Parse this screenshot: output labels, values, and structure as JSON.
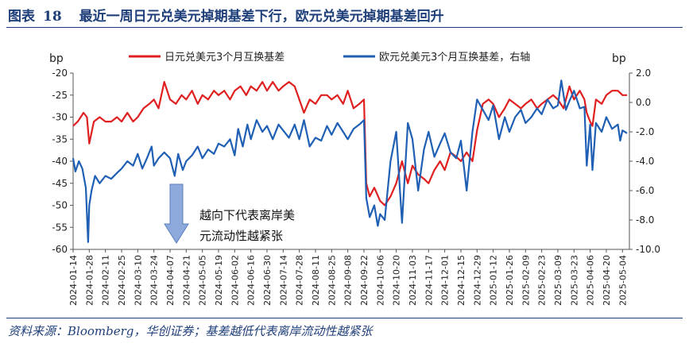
{
  "header": {
    "figure_label": "图表",
    "figure_number": "18",
    "title": "最近一周日元兑美元掉期基差下行，欧元兑美元掉期基差回升"
  },
  "footer": {
    "source": "资料来源：Bloomberg，华创证券；基差越低代表离岸流动性越紧张"
  },
  "annotation": {
    "line1": "越向下代表离岸美",
    "line2": "元流动性越紧张",
    "arrow_color": "#8ea9db",
    "arrow_icon": "down-arrow-icon"
  },
  "chart_data": {
    "type": "line",
    "y_left_label": "bp",
    "y_right_label": "bp",
    "y_left_range": [
      -60,
      -20
    ],
    "y_left_ticks": [
      "-20",
      "-25",
      "-30",
      "-35",
      "-40",
      "-45",
      "-50",
      "-55",
      "-60"
    ],
    "y_right_range": [
      -10,
      2
    ],
    "y_right_ticks": [
      "2.0",
      "0.0",
      "-2.0",
      "-4.0",
      "-6.0",
      "-8.0",
      "-10.0"
    ],
    "x_tick_labels": [
      "2024-01-14",
      "2024-01-28",
      "2024-02-11",
      "2024-02-25",
      "2024-03-10",
      "2024-03-24",
      "2024-04-07",
      "2024-04-21",
      "2024-05-05",
      "2024-05-19",
      "2024-06-02",
      "2024-06-16",
      "2024-06-30",
      "2024-07-14",
      "2024-07-28",
      "2024-08-11",
      "2024-08-25",
      "2024-09-08",
      "2024-09-22",
      "2024-10-06",
      "2024-10-20",
      "2024-11-03",
      "2024-11-17",
      "2024-12-01",
      "2024-12-15",
      "2024-12-29",
      "2025-01-12",
      "2025-01-26",
      "2025-02-09",
      "2025-02-23",
      "2025-03-09",
      "2025-03-23",
      "2025-04-06",
      "2025-04-20",
      "2025-05-04"
    ],
    "grid": false,
    "legend_position": "top",
    "series": [
      {
        "name": "日元兑美元3个月互换基差",
        "axis": "left",
        "color": "#e02020",
        "x": [
          "2024-01-14",
          "2024-01-18",
          "2024-01-23",
          "2024-01-26",
          "2024-01-28",
          "2024-02-01",
          "2024-02-06",
          "2024-02-11",
          "2024-02-16",
          "2024-02-21",
          "2024-02-25",
          "2024-03-01",
          "2024-03-06",
          "2024-03-10",
          "2024-03-15",
          "2024-03-20",
          "2024-03-24",
          "2024-03-28",
          "2024-04-02",
          "2024-04-07",
          "2024-04-12",
          "2024-04-17",
          "2024-04-21",
          "2024-04-26",
          "2024-05-01",
          "2024-05-05",
          "2024-05-10",
          "2024-05-15",
          "2024-05-19",
          "2024-05-24",
          "2024-05-29",
          "2024-06-02",
          "2024-06-07",
          "2024-06-12",
          "2024-06-16",
          "2024-06-21",
          "2024-06-26",
          "2024-06-30",
          "2024-07-05",
          "2024-07-10",
          "2024-07-14",
          "2024-07-19",
          "2024-07-24",
          "2024-07-28",
          "2024-08-01",
          "2024-08-06",
          "2024-08-11",
          "2024-08-16",
          "2024-08-21",
          "2024-08-25",
          "2024-08-30",
          "2024-09-04",
          "2024-09-08",
          "2024-09-13",
          "2024-09-18",
          "2024-09-22",
          "2024-09-24",
          "2024-09-27",
          "2024-10-01",
          "2024-10-06",
          "2024-10-10",
          "2024-10-15",
          "2024-10-20",
          "2024-10-25",
          "2024-10-30",
          "2024-11-03",
          "2024-11-08",
          "2024-11-13",
          "2024-11-17",
          "2024-11-22",
          "2024-11-27",
          "2024-12-01",
          "2024-12-06",
          "2024-12-11",
          "2024-12-15",
          "2024-12-20",
          "2024-12-25",
          "2024-12-29",
          "2025-01-03",
          "2025-01-08",
          "2025-01-12",
          "2025-01-17",
          "2025-01-22",
          "2025-01-26",
          "2025-01-31",
          "2025-02-05",
          "2025-02-09",
          "2025-02-14",
          "2025-02-19",
          "2025-02-23",
          "2025-02-28",
          "2025-03-05",
          "2025-03-09",
          "2025-03-14",
          "2025-03-19",
          "2025-03-23",
          "2025-03-28",
          "2025-04-01",
          "2025-04-03",
          "2025-04-06",
          "2025-04-08",
          "2025-04-11",
          "2025-04-16",
          "2025-04-20",
          "2025-04-25",
          "2025-04-30",
          "2025-05-04",
          "2025-05-08"
        ],
        "values": [
          -32,
          -31,
          -29,
          -30,
          -36,
          -31,
          -30,
          -31,
          -31,
          -30,
          -31,
          -29,
          -31,
          -30,
          -28,
          -27,
          -26,
          -28,
          -22,
          -26,
          -27,
          -25,
          -26,
          -24,
          -27,
          -25,
          -26,
          -24,
          -25,
          -24,
          -26,
          -24,
          -23,
          -25,
          -23,
          -24,
          -22,
          -24,
          -22,
          -24,
          -23,
          -22,
          -23,
          -26,
          -29,
          -26,
          -27,
          -25,
          -25,
          -26,
          -25,
          -27,
          -24,
          -28,
          -27,
          -26,
          -45,
          -48,
          -46,
          -49,
          -50,
          -48,
          -45,
          -40,
          -45,
          -41,
          -43,
          -44,
          -45,
          -42,
          -40,
          -42,
          -38,
          -39,
          -40,
          -38,
          -40,
          -33,
          -27,
          -26,
          -27,
          -30,
          -28,
          -26,
          -27,
          -28,
          -27,
          -26,
          -28,
          -27,
          -26,
          -25,
          -26,
          -28,
          -23,
          -26,
          -24,
          -26,
          -29,
          -31,
          -32,
          -26,
          -27,
          -25,
          -24,
          -24,
          -25,
          -25
        ]
      },
      {
        "name": "欧元兑美元3个月互换基差，右轴",
        "axis": "right",
        "color": "#1f5fb4",
        "x": [
          "2024-01-14",
          "2024-01-16",
          "2024-01-19",
          "2024-01-22",
          "2024-01-25",
          "2024-01-27",
          "2024-01-28",
          "2024-01-30",
          "2024-02-02",
          "2024-02-06",
          "2024-02-11",
          "2024-02-16",
          "2024-02-21",
          "2024-02-25",
          "2024-03-01",
          "2024-03-06",
          "2024-03-10",
          "2024-03-14",
          "2024-03-18",
          "2024-03-22",
          "2024-03-24",
          "2024-03-28",
          "2024-04-02",
          "2024-04-07",
          "2024-04-11",
          "2024-04-14",
          "2024-04-18",
          "2024-04-21",
          "2024-04-26",
          "2024-05-01",
          "2024-05-05",
          "2024-05-10",
          "2024-05-15",
          "2024-05-19",
          "2024-05-24",
          "2024-05-29",
          "2024-06-02",
          "2024-06-05",
          "2024-06-09",
          "2024-06-13",
          "2024-06-16",
          "2024-06-21",
          "2024-06-26",
          "2024-06-30",
          "2024-07-05",
          "2024-07-10",
          "2024-07-14",
          "2024-07-19",
          "2024-07-24",
          "2024-07-28",
          "2024-08-01",
          "2024-08-06",
          "2024-08-11",
          "2024-08-16",
          "2024-08-21",
          "2024-08-25",
          "2024-08-30",
          "2024-09-04",
          "2024-09-08",
          "2024-09-13",
          "2024-09-18",
          "2024-09-22",
          "2024-09-24",
          "2024-09-27",
          "2024-10-01",
          "2024-10-04",
          "2024-10-06",
          "2024-10-10",
          "2024-10-15",
          "2024-10-20",
          "2024-10-25",
          "2024-10-30",
          "2024-11-03",
          "2024-11-08",
          "2024-11-13",
          "2024-11-17",
          "2024-11-22",
          "2024-11-27",
          "2024-12-01",
          "2024-12-06",
          "2024-12-11",
          "2024-12-15",
          "2024-12-20",
          "2024-12-25",
          "2024-12-29",
          "2025-01-03",
          "2025-01-08",
          "2025-01-12",
          "2025-01-17",
          "2025-01-22",
          "2025-01-26",
          "2025-01-31",
          "2025-02-05",
          "2025-02-09",
          "2025-02-14",
          "2025-02-19",
          "2025-02-23",
          "2025-02-28",
          "2025-03-05",
          "2025-03-09",
          "2025-03-12",
          "2025-03-16",
          "2025-03-19",
          "2025-03-23",
          "2025-03-28",
          "2025-04-01",
          "2025-04-03",
          "2025-04-06",
          "2025-04-08",
          "2025-04-11",
          "2025-04-16",
          "2025-04-20",
          "2025-04-25",
          "2025-04-30",
          "2025-05-02",
          "2025-05-04",
          "2025-05-08"
        ],
        "values": [
          -3.8,
          -4.7,
          -4.0,
          -4.5,
          -5.8,
          -9.5,
          -7.0,
          -6.0,
          -5.0,
          -5.5,
          -5.0,
          -5.2,
          -4.8,
          -4.5,
          -4.0,
          -4.3,
          -3.5,
          -4.5,
          -3.8,
          -3.0,
          -4.3,
          -3.8,
          -3.4,
          -3.8,
          -5.0,
          -3.5,
          -4.6,
          -4.0,
          -3.6,
          -3.0,
          -3.8,
          -3.2,
          -3.5,
          -2.8,
          -3.0,
          -2.5,
          -3.6,
          -1.8,
          -3.0,
          -1.5,
          -2.5,
          -1.2,
          -2.0,
          -1.6,
          -2.5,
          -1.5,
          -1.9,
          -2.4,
          -1.5,
          -2.5,
          -1.2,
          -3.0,
          -2.4,
          -2.6,
          -1.6,
          -2.2,
          -1.4,
          -2.0,
          -2.5,
          -1.8,
          -1.5,
          -1.2,
          -6.5,
          -7.8,
          -7.0,
          -8.4,
          -7.6,
          -8.0,
          -4.0,
          -2.0,
          -8.2,
          -1.4,
          -2.5,
          -6.0,
          -3.2,
          -2.0,
          -3.7,
          -2.8,
          -2.1,
          -3.4,
          -3.8,
          -2.6,
          -6.0,
          -2.0,
          0.2,
          -0.5,
          -1.2,
          -0.2,
          -2.5,
          -1.0,
          -2.0,
          -1.0,
          -0.5,
          -1.4,
          -1.0,
          -0.4,
          -0.8,
          0.2,
          -0.4,
          -0.2,
          1.5,
          -0.5,
          0.1,
          0.8,
          -0.4,
          -0.3,
          -4.3,
          -1.5,
          -4.6,
          -1.4,
          -2.0,
          -1.0,
          -1.8,
          -1.5,
          -2.6,
          -1.9,
          -2.1
        ]
      }
    ]
  }
}
